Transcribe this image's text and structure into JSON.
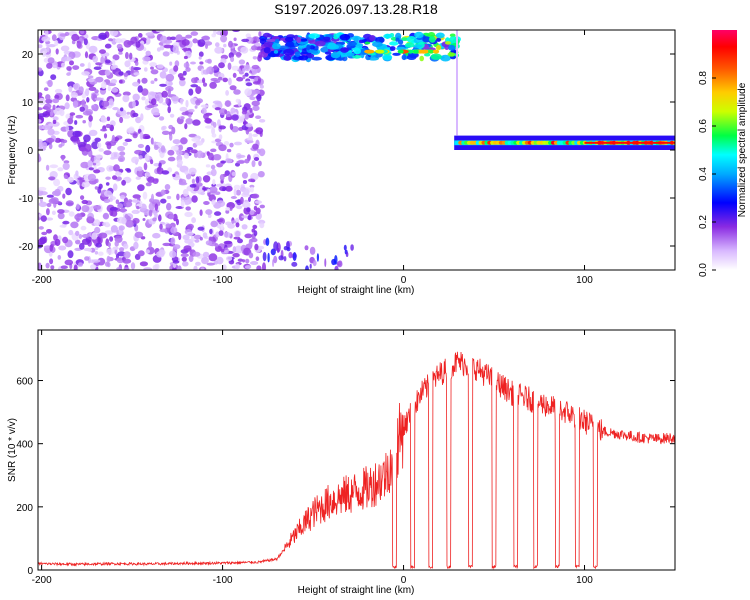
{
  "title": "S197.2026.097.13.28.R18",
  "chart_data": [
    {
      "type": "heatmap",
      "xlabel": "Height of straight line (km)",
      "ylabel": "Frequency (Hz)",
      "xlim": [
        -202,
        150
      ],
      "ylim": [
        -25,
        25
      ],
      "xticks": [
        -200,
        -100,
        0,
        100
      ],
      "yticks": [
        20,
        10,
        0,
        -10,
        -20
      ],
      "colorbar": {
        "label": "Normalized spectral amplitude",
        "range": [
          0,
          1
        ],
        "ticks": [
          "0.0",
          "0.2",
          "0.4",
          "0.6",
          "0.8"
        ],
        "colors": [
          "#ffffff",
          "#8a2be2",
          "#0000ff",
          "#00ffff",
          "#00ff00",
          "#ffff00",
          "#ff8c00",
          "#ff0000",
          "#ff0080"
        ]
      },
      "regions": [
        {
          "name": "noise",
          "x": [
            -202,
            -78
          ],
          "y": [
            -25,
            25
          ],
          "amplitude": 0.12
        },
        {
          "name": "upper band",
          "x": [
            -78,
            30
          ],
          "y": [
            19,
            24
          ],
          "amplitude": 0.55
        },
        {
          "name": "lower band",
          "x": [
            28,
            150
          ],
          "y": [
            0,
            3
          ],
          "amplitude": 0.85
        }
      ]
    },
    {
      "type": "line",
      "xlabel": "Height of straight line (km)",
      "ylabel": "SNR (10 * v/v)",
      "xlim": [
        -202,
        150
      ],
      "ylim": [
        0,
        760
      ],
      "xticks": [
        -200,
        -100,
        0,
        100
      ],
      "yticks": [
        0,
        200,
        400,
        600
      ],
      "color": "#ee2222",
      "series": [
        {
          "x": [
            -200,
            -180,
            -160,
            -140,
            -120,
            -100,
            -80,
            -70,
            -60,
            -50,
            -40,
            -30,
            -20,
            -10,
            0,
            10,
            20,
            30,
            40,
            50,
            60,
            70,
            80,
            90,
            100,
            110,
            120,
            130,
            140,
            150
          ],
          "values": [
            20,
            18,
            20,
            19,
            21,
            22,
            25,
            35,
            110,
            180,
            220,
            240,
            260,
            300,
            450,
            560,
            620,
            660,
            640,
            600,
            560,
            540,
            520,
            500,
            470,
            440,
            430,
            420,
            415,
            420
          ]
        }
      ],
      "dropouts": [
        -5,
        5,
        15,
        25,
        37,
        50,
        62,
        73,
        85,
        96,
        106
      ]
    }
  ]
}
